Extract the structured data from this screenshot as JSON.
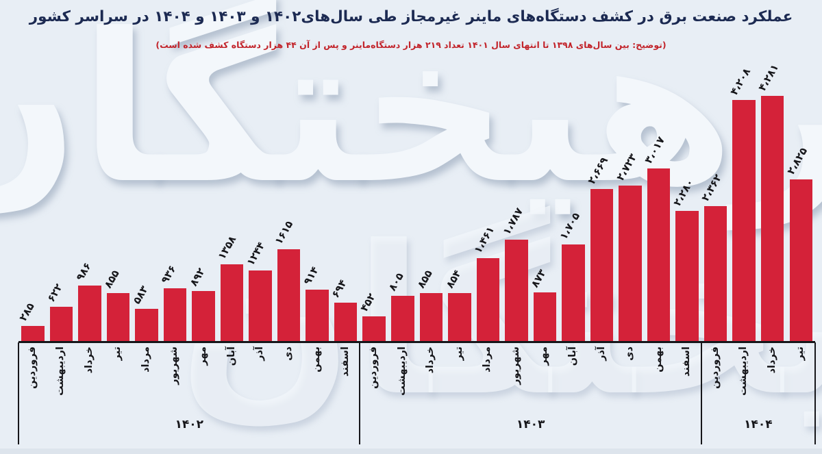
{
  "title": "عملکرد صنعت برق در کشف دستگاه‌های ماینر غیرمجاز طی سال‌های۱۴۰۲ و ۱۴۰۳ و ۱۴۰۴ در سراسر کشور",
  "subtitle": "(توضیح: بین سال‌های ۱۳۹۸ تا انتهای سال ۱۴۰۱ تعداد ۲۱۹ هزار دستگاه‌ماینر و پس از آن ۴۴ هزار دستگاه کشف شده است)",
  "watermark": {
    "text": "فرهیختگان"
  },
  "colors": {
    "background": "#e8eef5",
    "bar": "#d42239",
    "title_text": "#1c2a52",
    "subtitle_text": "#c2232a",
    "axis": "#16161a",
    "watermark": "#f3f7fb"
  },
  "chart_data": {
    "type": "bar",
    "title": "عملکرد صنعت برق در کشف دستگاه‌های ماینر غیرمجاز طی سال‌های ۱۴۰۲ و ۱۴۰۳ و ۱۴۰۴",
    "ylim": [
      0,
      4281
    ],
    "grid": false,
    "legend": false,
    "groups": [
      {
        "year_label": "۱۴۰۲",
        "months": [
          "فروردین",
          "اردیبهشت",
          "خرداد",
          "تیر",
          "مرداد",
          "شهریور",
          "مهر",
          "آبان",
          "آذر",
          "دی",
          "بهمن",
          "اسفند"
        ],
        "values": [
          285,
          622,
          986,
          855,
          583,
          936,
          892,
          1358,
          1244,
          1615,
          914,
          694
        ],
        "value_labels": [
          "۲۸۵",
          "۶۲۲",
          "۹۸۶",
          "۸۵۵",
          "۵۸۳",
          "۹۳۶",
          "۸۹۲",
          "۱۳۵۸",
          "۱۲۴۴",
          "۱۶۱۵",
          "۹۱۴",
          "۶۹۴"
        ]
      },
      {
        "year_label": "۱۴۰۳",
        "months": [
          "فروردین",
          "اردیبهشت",
          "خرداد",
          "تیر",
          "مرداد",
          "شهریور",
          "مهر",
          "آبان",
          "آذر",
          "دی",
          "بهمن",
          "اسفند"
        ],
        "values": [
          452,
          805,
          855,
          854,
          1461,
          1787,
          873,
          1705,
          2669,
          2723,
          3017,
          2280
        ],
        "value_labels": [
          "۴۵۲",
          "۸۰۵",
          "۸۵۵",
          "۸۵۴",
          "۱،۴۶۱",
          "۱،۷۸۷",
          "۸۷۳",
          "۱،۷۰۵",
          "۲،۶۶۹",
          "۲،۷۲۳",
          "۳،۰۱۷",
          "۲،۲۸۰"
        ]
      },
      {
        "year_label": "۱۴۰۴",
        "months": [
          "فروردین",
          "اردیبهشت",
          "خرداد",
          "تیر"
        ],
        "values": [
          2362,
          4208,
          4281,
          2825
        ],
        "value_labels": [
          "۲،۳۶۲",
          "۴،۲۰۸",
          "۴،۲۸۱",
          "۲،۸۲۵"
        ]
      }
    ]
  }
}
